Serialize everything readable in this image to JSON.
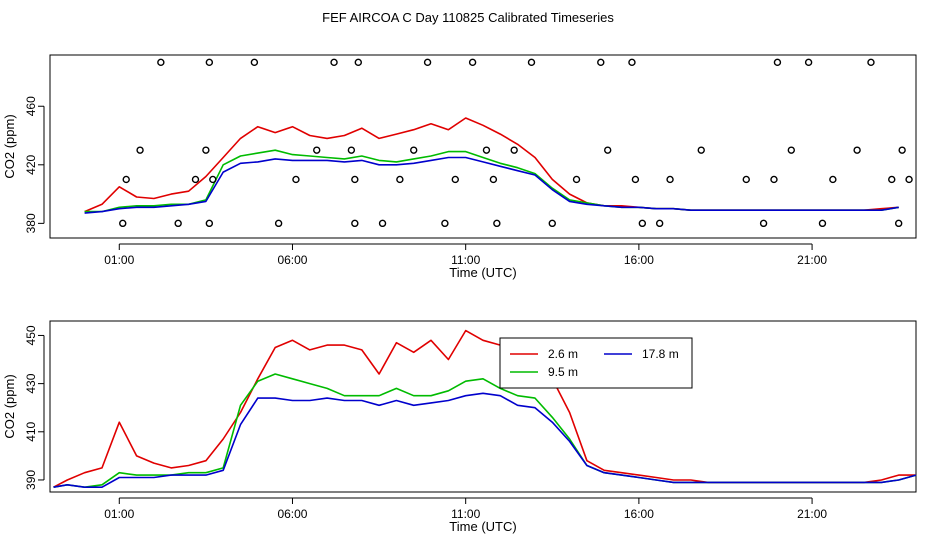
{
  "title": "FEF AIRCOA C  Day 110825  Calibrated Timeseries",
  "chart_data": [
    {
      "type": "line",
      "panel": "top",
      "xlabel": "Time (UTC)",
      "ylabel": "CO2 (ppm)",
      "xlim": [
        -1,
        24
      ],
      "ylim": [
        370,
        495
      ],
      "x_ticks": [
        1,
        6,
        11,
        16,
        21
      ],
      "x_tick_labels": [
        "01:00",
        "06:00",
        "11:00",
        "16:00",
        "21:00"
      ],
      "y_ticks": [
        380,
        420,
        460
      ],
      "y_tick_labels": [
        "380",
        "420",
        "460"
      ],
      "series": [
        {
          "name": "2.6 m",
          "color": "#e00000",
          "x": [
            0,
            0.5,
            1,
            1.5,
            2,
            2.5,
            3,
            3.5,
            4,
            4.5,
            5,
            5.5,
            6,
            6.5,
            7,
            7.5,
            8,
            8.5,
            9,
            9.5,
            10,
            10.5,
            11,
            11.5,
            12,
            12.5,
            13,
            13.5,
            14,
            14.5,
            15,
            15.5,
            16,
            16.5,
            17,
            17.5,
            18,
            18.5,
            19,
            19.5,
            20,
            20.5,
            21,
            21.5,
            22,
            22.5,
            23,
            23.5
          ],
          "y": [
            388,
            393,
            405,
            398,
            397,
            400,
            402,
            412,
            425,
            438,
            446,
            442,
            446,
            440,
            438,
            440,
            445,
            438,
            441,
            444,
            448,
            444,
            452,
            447,
            441,
            434,
            425,
            410,
            400,
            394,
            392,
            392,
            391,
            390,
            390,
            389,
            389,
            389,
            389,
            389,
            389,
            389,
            389,
            389,
            389,
            389,
            390,
            391
          ]
        },
        {
          "name": "9.5 m",
          "color": "#00bb00",
          "x": [
            0,
            0.5,
            1,
            1.5,
            2,
            2.5,
            3,
            3.5,
            4,
            4.5,
            5,
            5.5,
            6,
            6.5,
            7,
            7.5,
            8,
            8.5,
            9,
            9.5,
            10,
            10.5,
            11,
            11.5,
            12,
            12.5,
            13,
            13.5,
            14,
            14.5,
            15,
            15.5,
            16,
            16.5,
            17,
            17.5,
            18,
            18.5,
            19,
            19.5,
            20,
            20.5,
            21,
            21.5,
            22,
            22.5,
            23,
            23.5
          ],
          "y": [
            388,
            388,
            391,
            392,
            392,
            393,
            393,
            396,
            420,
            426,
            428,
            430,
            427,
            426,
            425,
            424,
            426,
            423,
            422,
            424,
            426,
            429,
            429,
            425,
            421,
            418,
            414,
            404,
            396,
            394,
            392,
            391,
            391,
            390,
            390,
            389,
            389,
            389,
            389,
            389,
            389,
            389,
            389,
            389,
            389,
            389,
            389,
            391
          ]
        },
        {
          "name": "17.8 m",
          "color": "#0000cc",
          "x": [
            0,
            0.5,
            1,
            1.5,
            2,
            2.5,
            3,
            3.5,
            4,
            4.5,
            5,
            5.5,
            6,
            6.5,
            7,
            7.5,
            8,
            8.5,
            9,
            9.5,
            10,
            10.5,
            11,
            11.5,
            12,
            12.5,
            13,
            13.5,
            14,
            14.5,
            15,
            15.5,
            16,
            16.5,
            17,
            17.5,
            18,
            18.5,
            19,
            19.5,
            20,
            20.5,
            21,
            21.5,
            22,
            22.5,
            23,
            23.5
          ],
          "y": [
            387,
            388,
            390,
            391,
            391,
            392,
            393,
            395,
            415,
            421,
            422,
            424,
            423,
            423,
            423,
            422,
            423,
            420,
            420,
            421,
            423,
            425,
            425,
            422,
            419,
            416,
            413,
            403,
            395,
            393,
            392,
            391,
            391,
            390,
            390,
            389,
            389,
            389,
            389,
            389,
            389,
            389,
            389,
            389,
            389,
            389,
            389,
            391
          ]
        }
      ],
      "markers": {
        "symbol": "circle",
        "color": "#000000",
        "x": [
          1.1,
          1.2,
          1.6,
          2.2,
          2.7,
          3.2,
          3.5,
          3.6,
          3.6,
          3.7,
          4.9,
          5.6,
          6.1,
          6.7,
          7.2,
          7.7,
          7.8,
          7.8,
          7.9,
          8.6,
          9.1,
          9.5,
          9.9,
          10.4,
          10.7,
          11.2,
          11.6,
          11.8,
          11.9,
          12.4,
          12.9,
          13.5,
          14.2,
          14.9,
          15.1,
          15.8,
          15.9,
          16.1,
          16.6,
          16.9,
          17.8,
          19.1,
          19.6,
          19.9,
          20.0,
          20.4,
          20.9,
          21.3,
          21.6,
          22.3,
          22.7,
          23.3,
          23.5,
          23.6,
          23.8
        ],
        "y": [
          380,
          410,
          430,
          490,
          380,
          410,
          430,
          380,
          490,
          410,
          490,
          380,
          410,
          430,
          490,
          430,
          410,
          380,
          490,
          380,
          410,
          430,
          490,
          380,
          410,
          490,
          430,
          410,
          380,
          430,
          490,
          380,
          410,
          490,
          430,
          490,
          410,
          380,
          380,
          410,
          430,
          410,
          380,
          410,
          490,
          430,
          490,
          380,
          410,
          430,
          490,
          410,
          380,
          430,
          410
        ]
      }
    },
    {
      "type": "line",
      "panel": "bottom",
      "xlabel": "Time (UTC)",
      "ylabel": "CO2 (ppm)",
      "xlim": [
        -1,
        24
      ],
      "ylim": [
        385,
        456
      ],
      "x_ticks": [
        1,
        6,
        11,
        16,
        21
      ],
      "x_tick_labels": [
        "01:00",
        "06:00",
        "11:00",
        "16:00",
        "21:00"
      ],
      "y_ticks": [
        390,
        410,
        430,
        450
      ],
      "y_tick_labels": [
        "390",
        "410",
        "430",
        "450"
      ],
      "legend": {
        "placement": "top-right",
        "entries": [
          "2.6 m",
          "9.5 m",
          "17.8 m"
        ]
      },
      "series": [
        {
          "name": "2.6 m",
          "color": "#e00000",
          "x": [
            -0.9,
            -0.5,
            0,
            0.5,
            1,
            1.5,
            2,
            2.5,
            3,
            3.5,
            4,
            4.5,
            5,
            5.5,
            6,
            6.5,
            7,
            7.5,
            8,
            8.5,
            9,
            9.5,
            10,
            10.5,
            11,
            11.5,
            12,
            12.5,
            13,
            13.5,
            14,
            14.5,
            15,
            15.5,
            16,
            16.5,
            17,
            17.5,
            18,
            18.5,
            19,
            19.5,
            20,
            20.5,
            21,
            21.5,
            22,
            22.5,
            23,
            23.5,
            24
          ],
          "y": [
            387,
            390,
            393,
            395,
            414,
            400,
            397,
            395,
            396,
            398,
            407,
            418,
            432,
            445,
            448,
            444,
            446,
            446,
            444,
            434,
            447,
            443,
            448,
            440,
            452,
            448,
            446,
            434,
            438,
            432,
            418,
            398,
            394,
            393,
            392,
            391,
            390,
            390,
            389,
            389,
            389,
            389,
            389,
            389,
            389,
            389,
            389,
            389,
            390,
            392,
            392
          ]
        },
        {
          "name": "9.5 m",
          "color": "#00bb00",
          "x": [
            -0.9,
            -0.5,
            0,
            0.5,
            1,
            1.5,
            2,
            2.5,
            3,
            3.5,
            4,
            4.5,
            5,
            5.5,
            6,
            6.5,
            7,
            7.5,
            8,
            8.5,
            9,
            9.5,
            10,
            10.5,
            11,
            11.5,
            12,
            12.5,
            13,
            13.5,
            14,
            14.5,
            15,
            15.5,
            16,
            16.5,
            17,
            17.5,
            18,
            18.5,
            19,
            19.5,
            20,
            20.5,
            21,
            21.5,
            22,
            22.5,
            23,
            23.5,
            24
          ],
          "y": [
            387,
            388,
            387,
            388,
            393,
            392,
            392,
            392,
            393,
            393,
            395,
            421,
            431,
            434,
            432,
            430,
            428,
            425,
            425,
            425,
            428,
            425,
            425,
            427,
            431,
            432,
            428,
            425,
            424,
            416,
            407,
            396,
            393,
            392,
            391,
            390,
            389,
            389,
            389,
            389,
            389,
            389,
            389,
            389,
            389,
            389,
            389,
            389,
            389,
            390,
            392
          ]
        },
        {
          "name": "17.8 m",
          "color": "#0000cc",
          "x": [
            -0.9,
            -0.5,
            0,
            0.5,
            1,
            1.5,
            2,
            2.5,
            3,
            3.5,
            4,
            4.5,
            5,
            5.5,
            6,
            6.5,
            7,
            7.5,
            8,
            8.5,
            9,
            9.5,
            10,
            10.5,
            11,
            11.5,
            12,
            12.5,
            13,
            13.5,
            14,
            14.5,
            15,
            15.5,
            16,
            16.5,
            17,
            17.5,
            18,
            18.5,
            19,
            19.5,
            20,
            20.5,
            21,
            21.5,
            22,
            22.5,
            23,
            23.5,
            24
          ],
          "y": [
            387,
            388,
            387,
            387,
            391,
            391,
            391,
            392,
            392,
            392,
            394,
            413,
            424,
            424,
            423,
            423,
            424,
            423,
            423,
            421,
            423,
            421,
            422,
            423,
            425,
            426,
            425,
            421,
            420,
            414,
            406,
            396,
            393,
            392,
            391,
            390,
            389,
            389,
            389,
            389,
            389,
            389,
            389,
            389,
            389,
            389,
            389,
            389,
            389,
            390,
            392
          ]
        }
      ]
    }
  ]
}
